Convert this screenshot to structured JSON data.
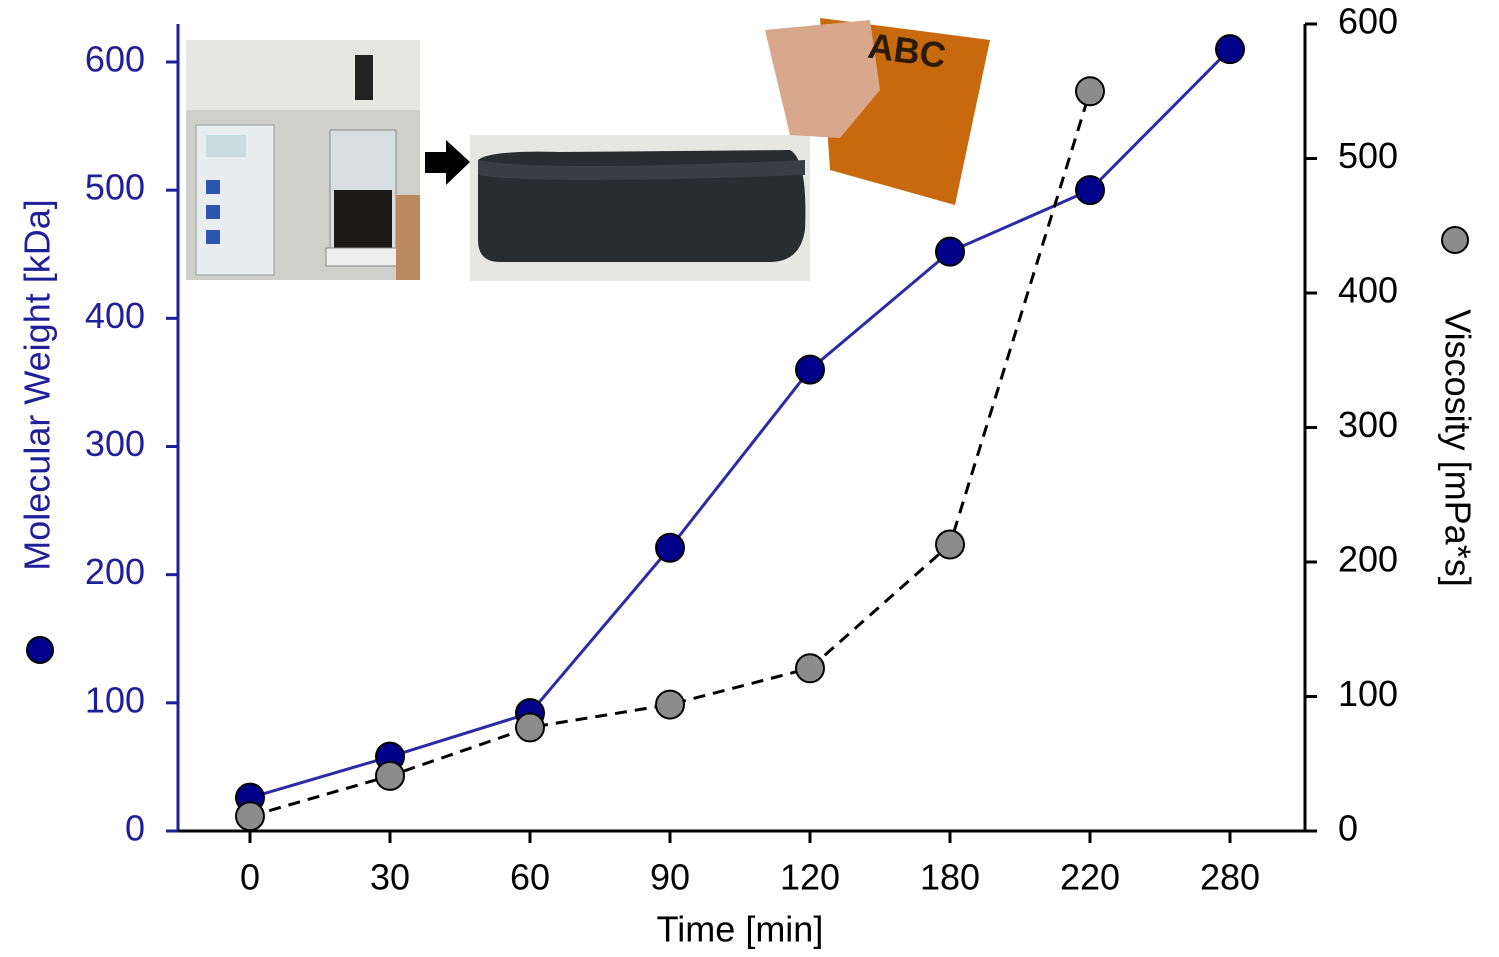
{
  "chart_data": {
    "type": "line",
    "xlabel": "Time [min]",
    "ylabel": "Molecular Weight [kDa]",
    "y2label": "Viscosity [mPa*s]",
    "categories": [
      "0",
      "30",
      "60",
      "90",
      "120",
      "180",
      "220",
      "280"
    ],
    "series": [
      {
        "color": "#00008b",
        "line_color": "#2b2ba6",
        "dashed": false,
        "values": [
          26,
          58,
          92,
          221,
          360,
          452,
          500,
          610
        ]
      },
      {
        "color": "#8c8c8c",
        "line_color": "#000000",
        "dashed": true,
        "axis": "y2",
        "values": [
          11,
          41,
          77,
          94,
          121,
          213,
          550,
          null
        ]
      }
    ],
    "ylim": [
      0,
      600
    ],
    "yticks": [
      0,
      100,
      200,
      300,
      400,
      500,
      600
    ],
    "y2lim": [
      0,
      600
    ],
    "y2ticks": [
      0,
      100,
      200,
      300,
      400,
      500,
      600
    ],
    "ytick_color": "#1f1f99",
    "grid": false
  }
}
